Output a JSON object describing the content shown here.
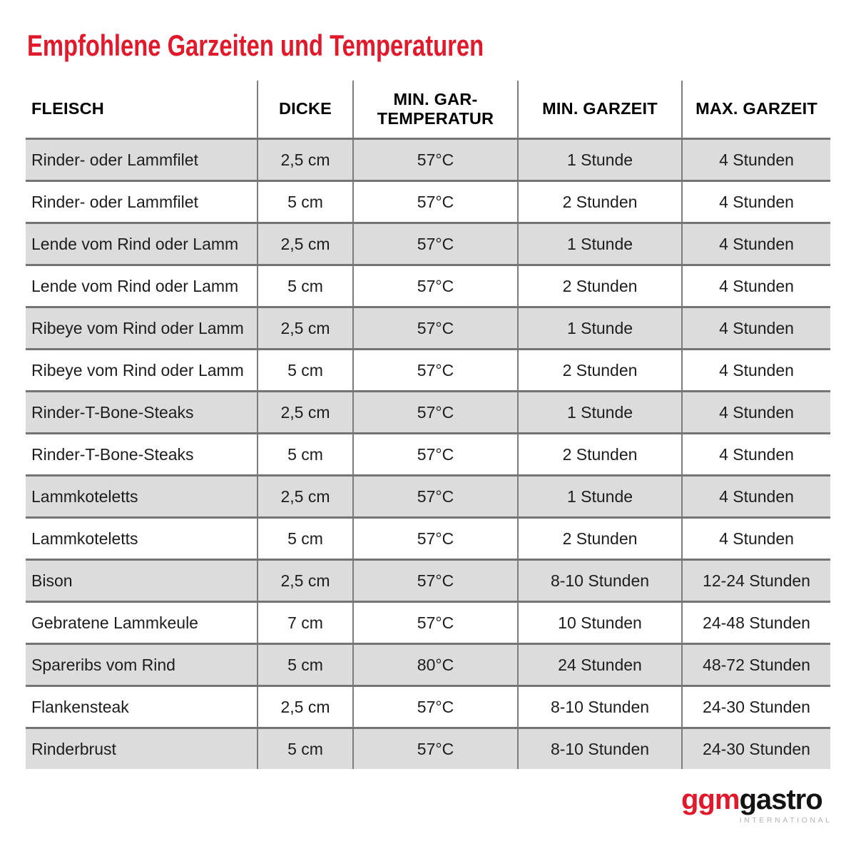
{
  "page": {
    "title": "Empfohlene Garzeiten und Temperaturen"
  },
  "colors": {
    "accent_red": "#e0192b",
    "row_alt_gray": "#dcdcdc",
    "row_separator_gray": "#747474",
    "column_line_gray": "#7d7d7d",
    "header_text": "#000000",
    "body_text": "#1d1d1d",
    "logo_red": "#e0192b",
    "logo_black": "#131313",
    "logo_sub_gray": "#b3b3b3"
  },
  "table": {
    "columns": [
      "FLEISCH",
      "DICKE",
      "MIN. GAR-TEMPERATUR",
      "MIN. GARZEIT",
      "MAX. GARZEIT"
    ],
    "rows": [
      {
        "fleisch": "Rinder- oder Lammfilet",
        "dicke": "2,5 cm",
        "min_gar_temperatur": "57°C",
        "min_garzeit": "1 Stunde",
        "max_garzeit": "4 Stunden"
      },
      {
        "fleisch": "Rinder- oder Lammfilet",
        "dicke": "5 cm",
        "min_gar_temperatur": "57°C",
        "min_garzeit": "2 Stunden",
        "max_garzeit": "4 Stunden"
      },
      {
        "fleisch": "Lende vom Rind oder Lamm",
        "dicke": "2,5 cm",
        "min_gar_temperatur": "57°C",
        "min_garzeit": "1 Stunde",
        "max_garzeit": "4 Stunden"
      },
      {
        "fleisch": "Lende vom Rind oder Lamm",
        "dicke": "5 cm",
        "min_gar_temperatur": "57°C",
        "min_garzeit": "2 Stunden",
        "max_garzeit": "4 Stunden"
      },
      {
        "fleisch": "Ribeye vom Rind oder Lamm",
        "dicke": "2,5 cm",
        "min_gar_temperatur": "57°C",
        "min_garzeit": "1 Stunde",
        "max_garzeit": "4 Stunden"
      },
      {
        "fleisch": "Ribeye vom Rind oder Lamm",
        "dicke": "5 cm",
        "min_gar_temperatur": "57°C",
        "min_garzeit": "2 Stunden",
        "max_garzeit": "4 Stunden"
      },
      {
        "fleisch": "Rinder-T-Bone-Steaks",
        "dicke": "2,5 cm",
        "min_gar_temperatur": "57°C",
        "min_garzeit": "1 Stunde",
        "max_garzeit": "4 Stunden"
      },
      {
        "fleisch": "Rinder-T-Bone-Steaks",
        "dicke": "5 cm",
        "min_gar_temperatur": "57°C",
        "min_garzeit": "2 Stunden",
        "max_garzeit": "4 Stunden"
      },
      {
        "fleisch": "Lammkoteletts",
        "dicke": "2,5 cm",
        "min_gar_temperatur": "57°C",
        "min_garzeit": "1 Stunde",
        "max_garzeit": "4 Stunden"
      },
      {
        "fleisch": "Lammkoteletts",
        "dicke": "5 cm",
        "min_gar_temperatur": "57°C",
        "min_garzeit": "2 Stunden",
        "max_garzeit": "4 Stunden"
      },
      {
        "fleisch": "Bison",
        "dicke": "2,5 cm",
        "min_gar_temperatur": "57°C",
        "min_garzeit": "8-10 Stunden",
        "max_garzeit": "12-24 Stunden"
      },
      {
        "fleisch": "Gebratene Lammkeule",
        "dicke": "7 cm",
        "min_gar_temperatur": "57°C",
        "min_garzeit": "10 Stunden",
        "max_garzeit": "24-48 Stunden"
      },
      {
        "fleisch": "Spareribs vom Rind",
        "dicke": "5 cm",
        "min_gar_temperatur": "80°C",
        "min_garzeit": "24 Stunden",
        "max_garzeit": "48-72 Stunden"
      },
      {
        "fleisch": "Flankensteak",
        "dicke": "2,5 cm",
        "min_gar_temperatur": "57°C",
        "min_garzeit": "8-10 Stunden",
        "max_garzeit": "24-30 Stunden"
      },
      {
        "fleisch": "Rinderbrust",
        "dicke": "5 cm",
        "min_gar_temperatur": "57°C",
        "min_garzeit": "8-10 Stunden",
        "max_garzeit": "24-30 Stunden"
      }
    ]
  },
  "logo": {
    "part_red": "ggm",
    "part_black": "gastro",
    "subtitle": "INTERNATIONAL"
  }
}
